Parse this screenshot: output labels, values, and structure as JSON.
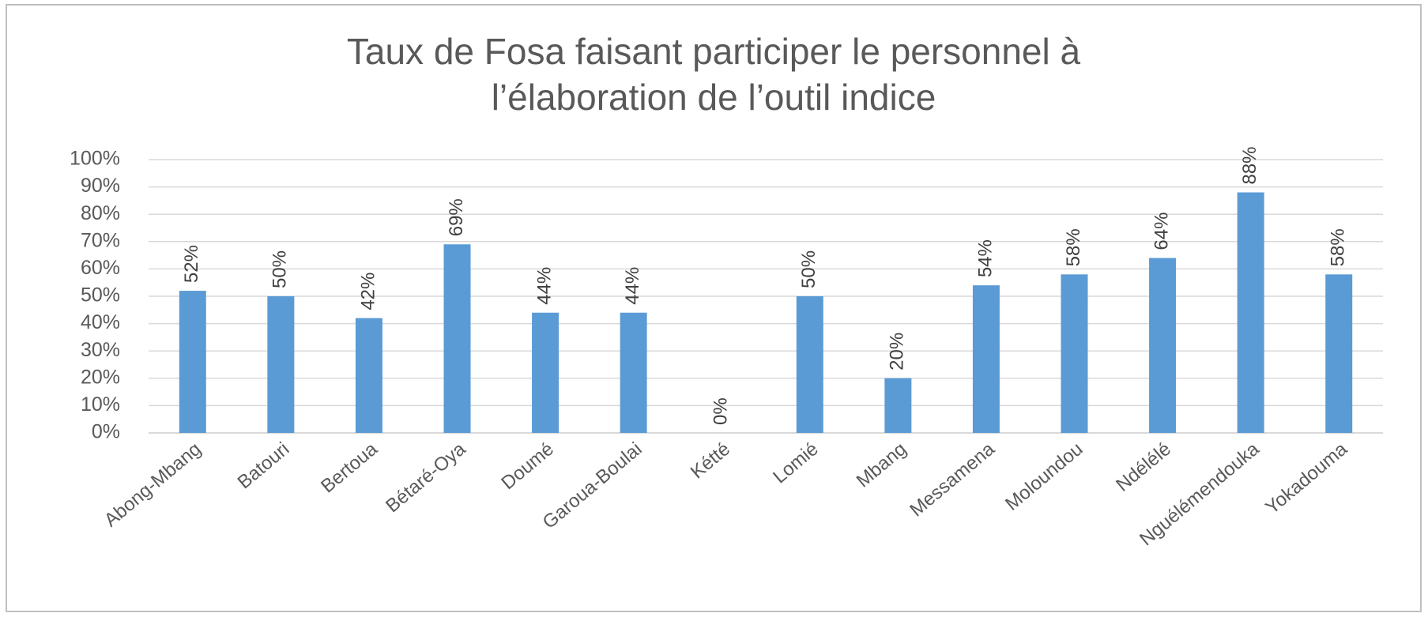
{
  "chart_data": {
    "type": "bar",
    "title": "Taux de Fosa faisant participer le personnel à l’élaboration de l’outil indice",
    "title_lines": [
      "Taux de Fosa faisant participer le personnel à",
      "l’élaboration de l’outil indice"
    ],
    "categories": [
      "Abong-Mbang",
      "Batouri",
      "Bertoua",
      "Bétaré-Oya",
      "Doumé",
      "Garoua-Boulai",
      "Kétté",
      "Lomié",
      "Mbang",
      "Messamena",
      "Moloundou",
      "Ndélélé",
      "Nguélémendouka",
      "Yokadouma"
    ],
    "values": [
      52,
      50,
      42,
      69,
      44,
      44,
      0,
      50,
      20,
      54,
      58,
      64,
      88,
      58
    ],
    "value_labels": [
      "52%",
      "50%",
      "42%",
      "69%",
      "44%",
      "44%",
      "0%",
      "50%",
      "20%",
      "54%",
      "58%",
      "64%",
      "88%",
      "58%"
    ],
    "color": "#5b9bd5",
    "ylim": [
      0,
      100
    ],
    "yticks": [
      {
        "value": 0,
        "label": "0%"
      },
      {
        "value": 10,
        "label": "10%"
      },
      {
        "value": 20,
        "label": "20%"
      },
      {
        "value": 30,
        "label": "30%"
      },
      {
        "value": 40,
        "label": "40%"
      },
      {
        "value": 50,
        "label": "50%"
      },
      {
        "value": 60,
        "label": "60%"
      },
      {
        "value": 70,
        "label": "70%"
      },
      {
        "value": 80,
        "label": "80%"
      },
      {
        "value": 90,
        "label": "90%"
      },
      {
        "value": 100,
        "label": "100%"
      }
    ],
    "grid": true
  }
}
